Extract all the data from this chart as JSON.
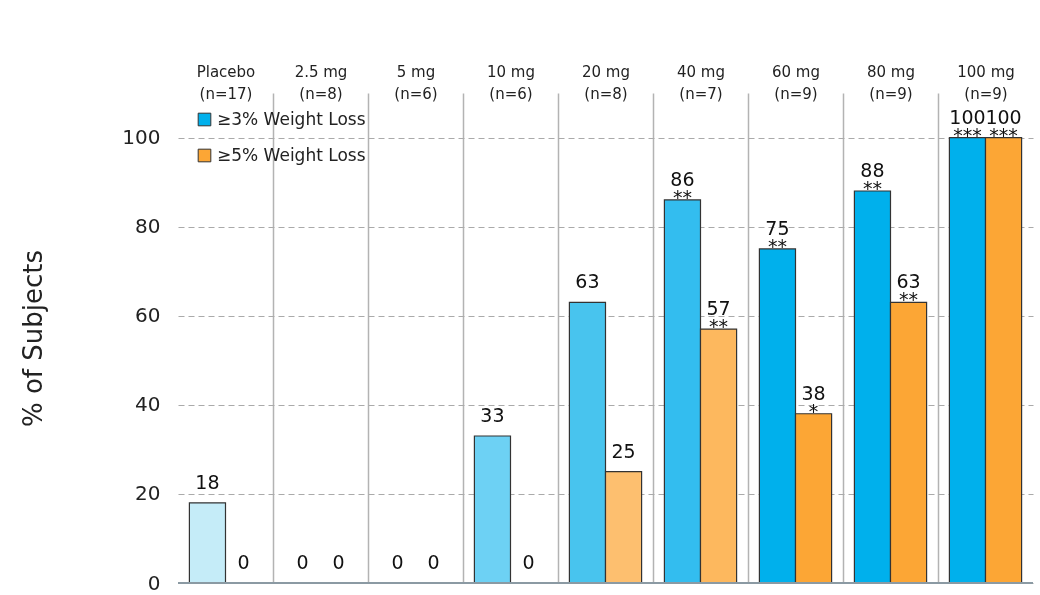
{
  "chart_data": {
    "type": "bar",
    "categories": [
      "Placebo\n(n=17)",
      "2.5 mg\n(n=8)",
      "5 mg\n(n=6)",
      "10 mg\n(n=6)",
      "20 mg\n(n=8)",
      "40 mg\n(n=7)",
      "60 mg\n(n=9)",
      "80 mg\n(n=9)",
      "100 mg\n(n=9)"
    ],
    "ylabel": "% of Subjects",
    "ylim": [
      0,
      110
    ],
    "yticks": [
      0,
      20,
      40,
      60,
      80,
      100
    ],
    "grid": true,
    "legend": "top left",
    "series": [
      {
        "name": "≥3% Weight Loss",
        "color": "#00b0ec",
        "colors": [
          "#c5ecf8",
          "#c5ecf8",
          "#9fdff6",
          "#6dd1f4",
          "#48c4ee",
          "#33bdef",
          "#00b0ec",
          "#00b0ec",
          "#00b0ec"
        ],
        "values": [
          18,
          0,
          0,
          33,
          63,
          86,
          75,
          88,
          100
        ],
        "value_labels": [
          "18",
          "0",
          "0",
          "33",
          "63",
          "86\n**",
          "75\n**",
          "88\n**",
          "100\n***"
        ]
      },
      {
        "name": "≥5% Weight Loss",
        "color": "#fca635",
        "colors": [
          "#fee3bd",
          "#fee3bd",
          "#fed39a",
          "#fdc67c",
          "#fdbf6f",
          "#fdb85e",
          "#fca635",
          "#fca635",
          "#fca635"
        ],
        "values": [
          0,
          0,
          0,
          0,
          25,
          57,
          38,
          63,
          100
        ],
        "value_labels": [
          "0",
          "0",
          "0",
          "0",
          "25",
          "57\n**",
          "38\n*",
          "63\n**",
          "100\n***"
        ]
      }
    ]
  }
}
